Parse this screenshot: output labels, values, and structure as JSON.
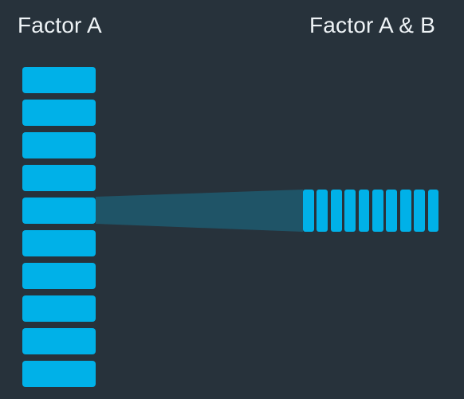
{
  "labels": {
    "left": "Factor A",
    "right": "Factor A & B"
  },
  "factor_a": {
    "block_count": 10,
    "highlighted_index": 4
  },
  "factor_ab": {
    "block_count": 10
  },
  "colors": {
    "background": "#27323b",
    "block": "#00b1e8",
    "wedge": "#1f5a70",
    "text": "#eef3f6"
  }
}
